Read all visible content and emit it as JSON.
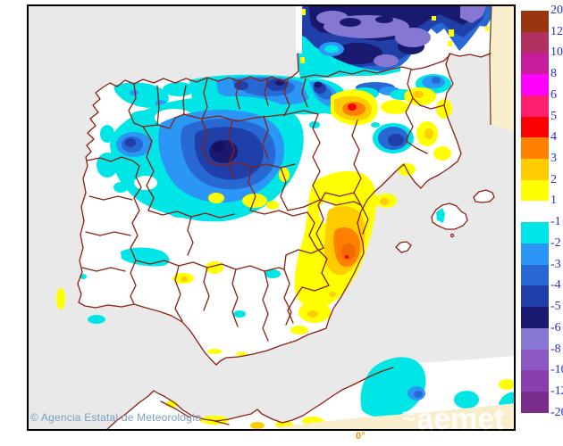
{
  "map": {
    "attribution": "© Agencia Estatal de Meteorología",
    "watermark": "aemet",
    "meridian_label": "0°"
  },
  "legend": {
    "labels": [
      "20",
      "12",
      "10",
      "8",
      "6",
      "5",
      "4",
      "3",
      "2",
      "1",
      "-1",
      "-2",
      "-3",
      "-4",
      "-5",
      "-6",
      "-8",
      "-10",
      "-12",
      "-20"
    ],
    "colors": [
      "#993612",
      "#b03060",
      "#c51d9e",
      "#ff00ff",
      "#ff1f6e",
      "#fa0000",
      "#ff8000",
      "#ffcc00",
      "#ffff00",
      "#ffffff",
      "#00e6e6",
      "#2b96f5",
      "#2768d3",
      "#203fa8",
      "#191970",
      "#8678d2",
      "#8d57c2",
      "#8a3fae",
      "#7b2d8e"
    ],
    "segment_height": 23.72,
    "label_color": "#2b2bd0"
  },
  "colors": {
    "sea": "#e9e9e9",
    "land": "#ffffff",
    "no_data": "#f8eecb",
    "boundary": "#8b1f14",
    "frame": "#000000"
  }
}
